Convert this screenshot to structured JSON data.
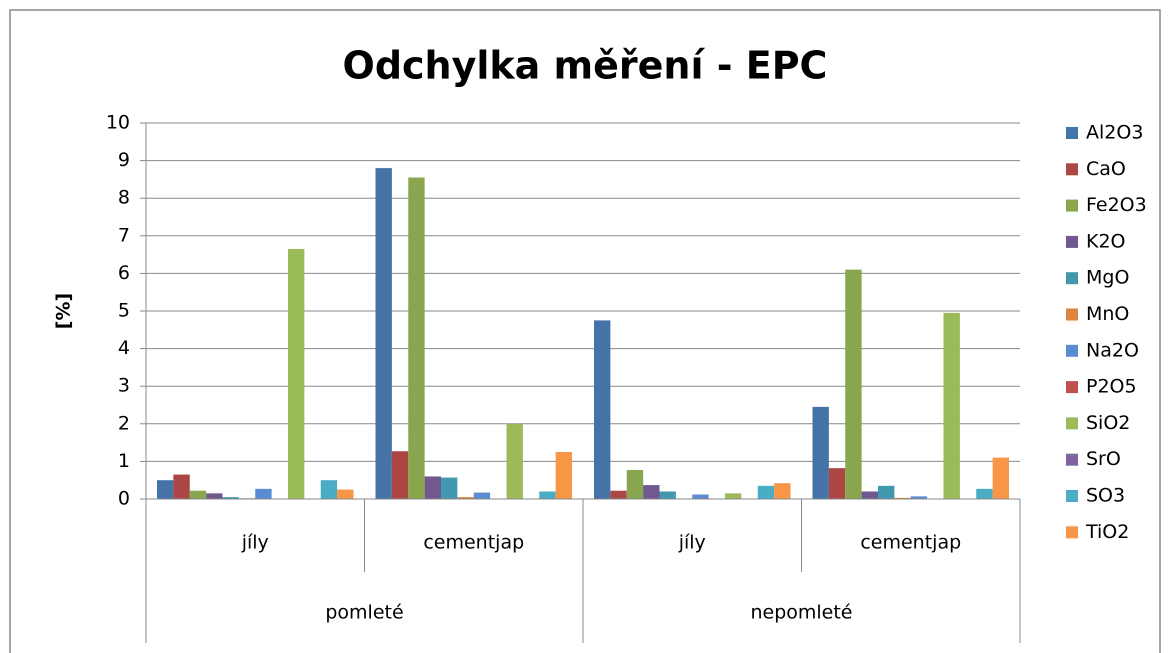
{
  "chart_data": {
    "type": "bar",
    "title": "Odchylka měření - EPC",
    "y_label": "[%]",
    "categories": [
      "jíly",
      "cementjap",
      "jíly",
      "cementjap"
    ],
    "groups": [
      "pomleté",
      "nepomleté"
    ],
    "ylim": [
      0,
      10
    ],
    "yticks": [
      0,
      1,
      2,
      3,
      4,
      5,
      6,
      7,
      8,
      9,
      10
    ],
    "grid": true,
    "legend": "right",
    "series": [
      {
        "name": "Al2O3",
        "color": "#4572a7",
        "values": [
          0.5,
          8.8,
          4.75,
          2.45
        ]
      },
      {
        "name": "CaO",
        "color": "#aa4643",
        "values": [
          0.65,
          1.27,
          0.22,
          0.82
        ]
      },
      {
        "name": "Fe2O3",
        "color": "#89a54e",
        "values": [
          0.22,
          8.55,
          0.77,
          6.1
        ]
      },
      {
        "name": "K2O",
        "color": "#71588f",
        "values": [
          0.15,
          0.6,
          0.37,
          0.2
        ]
      },
      {
        "name": "MgO",
        "color": "#4198af",
        "values": [
          0.05,
          0.57,
          0.2,
          0.35
        ]
      },
      {
        "name": "MnO",
        "color": "#db843d",
        "values": [
          0.02,
          0.05,
          0,
          0.03
        ]
      },
      {
        "name": "Na2O",
        "color": "#5b8bd0",
        "values": [
          0.27,
          0.17,
          0.12,
          0.07
        ]
      },
      {
        "name": "P2O5",
        "color": "#c0504d",
        "values": [
          0,
          0,
          0,
          0
        ]
      },
      {
        "name": "SiO2",
        "color": "#9bbb59",
        "values": [
          6.65,
          2.0,
          0.15,
          4.95
        ]
      },
      {
        "name": "SrO",
        "color": "#8064a2",
        "values": [
          0,
          0,
          0,
          0
        ]
      },
      {
        "name": "SO3",
        "color": "#4bacc6",
        "values": [
          0.5,
          0.2,
          0.35,
          0.27
        ]
      },
      {
        "name": "TiO2",
        "color": "#f79646",
        "values": [
          0.25,
          1.25,
          0.42,
          1.1
        ]
      }
    ]
  }
}
